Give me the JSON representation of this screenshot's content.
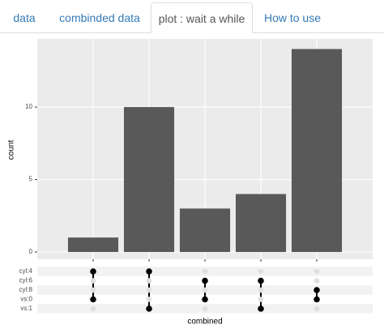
{
  "tabs": [
    "data",
    "combinded data",
    "plot : wait a while",
    "How to use"
  ],
  "active_tab": 2,
  "chart_data": {
    "type": "bar",
    "y_label": "count",
    "x_label": "combined",
    "values": [
      1,
      10,
      3,
      4,
      14
    ],
    "color": "#595959",
    "ylim": [
      -0.5,
      14.7
    ],
    "yticks": [
      0,
      5,
      10
    ],
    "grid": true,
    "sets": [
      {
        "name": "cyl:4",
        "members": [
          1,
          1,
          0,
          0,
          0
        ]
      },
      {
        "name": "cyl:6",
        "members": [
          0,
          0,
          1,
          1,
          0
        ]
      },
      {
        "name": "cyl:8",
        "members": [
          0,
          0,
          0,
          0,
          1
        ]
      },
      {
        "name": "vs:0",
        "members": [
          1,
          0,
          1,
          0,
          1
        ]
      },
      {
        "name": "vs:1",
        "members": [
          0,
          1,
          0,
          1,
          0
        ]
      }
    ]
  }
}
